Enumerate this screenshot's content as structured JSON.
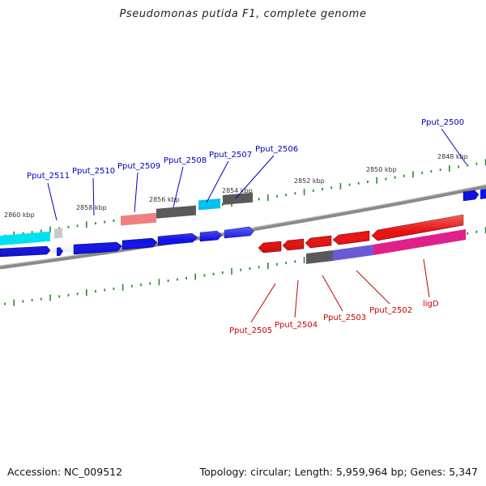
{
  "title": "Pseudomonas putida F1, complete genome",
  "footer": {
    "accession": "Accession: NC_009512",
    "summary": "Topology: circular; Length: 5,959,964 bp; Genes: 5,347"
  },
  "colors": {
    "forward_label": "#0000c0",
    "reverse_label": "#cc0000",
    "tick": "#2a8a2a",
    "backbone": "#8a8a8a"
  },
  "scale_labels": [
    {
      "text": "2860 kbp",
      "pos": 2860
    },
    {
      "text": "2858 kbp",
      "pos": 2858
    },
    {
      "text": "2856 kbp",
      "pos": 2856
    },
    {
      "text": "2854 kbp",
      "pos": 2854
    },
    {
      "text": "2852 kbp",
      "pos": 2852
    },
    {
      "text": "2850 kbp",
      "pos": 2850
    },
    {
      "text": "2848 kbp",
      "pos": 2848
    }
  ],
  "forward_labels": [
    "Pput_2511",
    "Pput_2510",
    "Pput_2509",
    "Pput_2508",
    "Pput_2507",
    "Pput_2506",
    "Pput_2500"
  ],
  "reverse_labels": [
    "Pput_2505",
    "Pput_2504",
    "Pput_2503",
    "Pput_2502",
    "ligD"
  ]
}
